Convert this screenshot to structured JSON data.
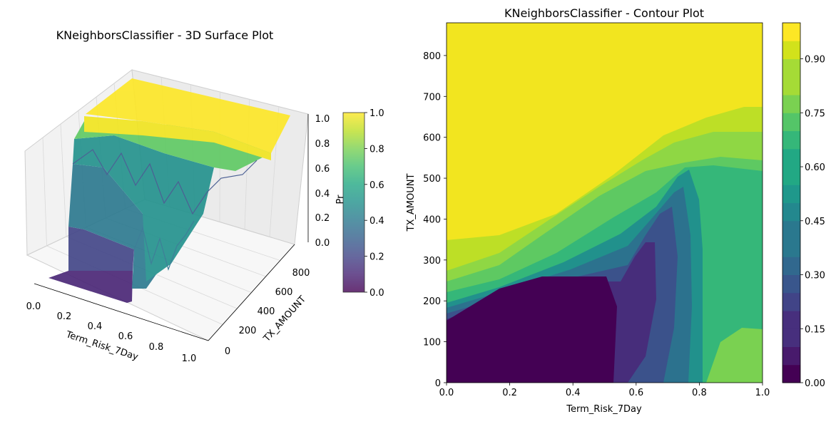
{
  "chart_data": [
    {
      "type": "surface3d",
      "title": "KNeighborsClassifier - 3D Surface Plot",
      "xlabel": "Term_Risk_7Day",
      "ylabel": "TX_AMOUNT",
      "zlabel": "Pr",
      "xlim": [
        0,
        1
      ],
      "ylim": [
        0,
        880
      ],
      "zlim": [
        0,
        1
      ],
      "x_ticks": [
        "0.0",
        "0.2",
        "0.4",
        "0.6",
        "0.8",
        "1.0"
      ],
      "y_ticks": [
        "0",
        "200",
        "400",
        "600",
        "800"
      ],
      "z_ticks": [
        "0.0",
        "0.2",
        "0.4",
        "0.6",
        "0.8",
        "1.0"
      ],
      "colorbar": {
        "ticks": [
          "0.0",
          "0.2",
          "0.4",
          "0.6",
          "0.8",
          "1.0"
        ],
        "range": [
          0,
          1
        ],
        "colormap": "viridis",
        "alpha": 0.8
      }
    },
    {
      "type": "contour",
      "title": "KNeighborsClassifier - Contour Plot",
      "xlabel": "Term_Risk_7Day",
      "ylabel": "TX_AMOUNT",
      "xlim": [
        0,
        1
      ],
      "ylim": [
        0,
        880
      ],
      "x_ticks": [
        "0.0",
        "0.2",
        "0.4",
        "0.6",
        "0.8",
        "1.0"
      ],
      "y_ticks": [
        "0",
        "100",
        "200",
        "300",
        "400",
        "500",
        "600",
        "700",
        "800"
      ],
      "levels": [
        0.0,
        0.05,
        0.1,
        0.15,
        0.2,
        0.25,
        0.3,
        0.35,
        0.4,
        0.45,
        0.5,
        0.55,
        0.6,
        0.65,
        0.7,
        0.75,
        0.8,
        0.85,
        0.9,
        0.95,
        1.0
      ],
      "colorbar": {
        "ticks": [
          "0.00",
          "0.15",
          "0.30",
          "0.45",
          "0.60",
          "0.75",
          "0.90"
        ],
        "range": [
          0,
          1
        ],
        "colormap": "viridis"
      }
    }
  ]
}
